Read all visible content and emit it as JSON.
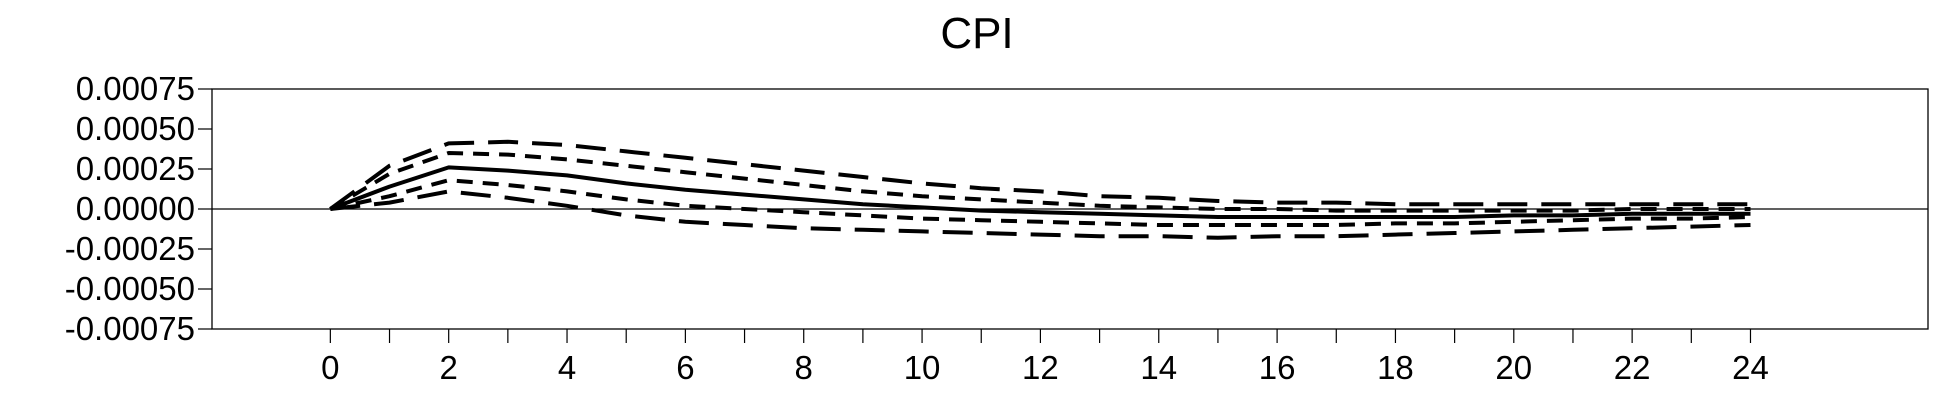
{
  "chart_data": {
    "type": "line",
    "title": "CPI",
    "xlabel": "",
    "ylabel": "",
    "x": [
      0,
      1,
      2,
      3,
      4,
      5,
      6,
      7,
      8,
      9,
      10,
      11,
      12,
      13,
      14,
      15,
      16,
      17,
      18,
      19,
      20,
      21,
      22,
      23,
      24
    ],
    "xlim": [
      -2,
      27
    ],
    "xticks": [
      0,
      2,
      4,
      6,
      8,
      10,
      12,
      14,
      16,
      18,
      20,
      22,
      24
    ],
    "xtick_labels": [
      "0",
      "2",
      "4",
      "6",
      "8",
      "10",
      "12",
      "14",
      "16",
      "18",
      "20",
      "22",
      "24"
    ],
    "ylim": [
      -0.00075,
      0.00075
    ],
    "yticks": [
      0.00075,
      0.0005,
      0.00025,
      0.0,
      -0.00025,
      -0.0005,
      -0.00075
    ],
    "ytick_labels": [
      "0.00075",
      "0.00050",
      "0.00025",
      "0.00000",
      "-0.00025",
      "-0.00050",
      "-0.00075"
    ],
    "zero_line": true,
    "grid": false,
    "legend": "none",
    "series": [
      {
        "style": "solid",
        "values": [
          0,
          0.00014,
          0.00026,
          0.00024,
          0.00021,
          0.00016,
          0.00012,
          9e-05,
          6e-05,
          3e-05,
          1e-05,
          -1e-05,
          -2e-05,
          -3e-05,
          -4e-05,
          -5e-05,
          -5e-05,
          -5e-05,
          -5e-05,
          -5e-05,
          -4e-05,
          -4e-05,
          -3e-05,
          -3e-05,
          -3e-05
        ]
      },
      {
        "style": "dashed",
        "values": [
          0,
          0.00022,
          0.00035,
          0.00034,
          0.00031,
          0.00027,
          0.00023,
          0.00019,
          0.00015,
          0.00011,
          8e-05,
          6e-05,
          4e-05,
          2e-05,
          1e-05,
          0.0,
          0.0,
          -1e-05,
          -1e-05,
          -1e-05,
          -1e-05,
          -1e-05,
          0.0,
          0.0,
          0.0
        ]
      },
      {
        "style": "dashed",
        "values": [
          0,
          8e-05,
          0.00018,
          0.00015,
          0.00011,
          6e-05,
          2e-05,
          0.0,
          -2e-05,
          -4e-05,
          -6e-05,
          -7e-05,
          -8e-05,
          -9e-05,
          -0.0001,
          -0.0001,
          -0.0001,
          -0.0001,
          -9e-05,
          -9e-05,
          -8e-05,
          -7e-05,
          -6e-05,
          -6e-05,
          -5e-05
        ]
      },
      {
        "style": "longdash",
        "values": [
          0,
          0.00027,
          0.00041,
          0.00042,
          0.0004,
          0.00036,
          0.00032,
          0.00028,
          0.00024,
          0.0002,
          0.00016,
          0.00013,
          0.00011,
          8e-05,
          7e-05,
          5e-05,
          4e-05,
          4e-05,
          3e-05,
          3e-05,
          3e-05,
          3e-05,
          3e-05,
          3e-05,
          3e-05
        ]
      },
      {
        "style": "longdash",
        "values": [
          0,
          4e-05,
          0.00011,
          7e-05,
          2e-05,
          -4e-05,
          -8e-05,
          -0.0001,
          -0.00012,
          -0.00013,
          -0.00014,
          -0.00015,
          -0.00016,
          -0.00017,
          -0.00017,
          -0.00018,
          -0.00017,
          -0.00017,
          -0.00016,
          -0.00015,
          -0.00014,
          -0.00013,
          -0.00012,
          -0.00011,
          -0.0001
        ]
      }
    ]
  }
}
